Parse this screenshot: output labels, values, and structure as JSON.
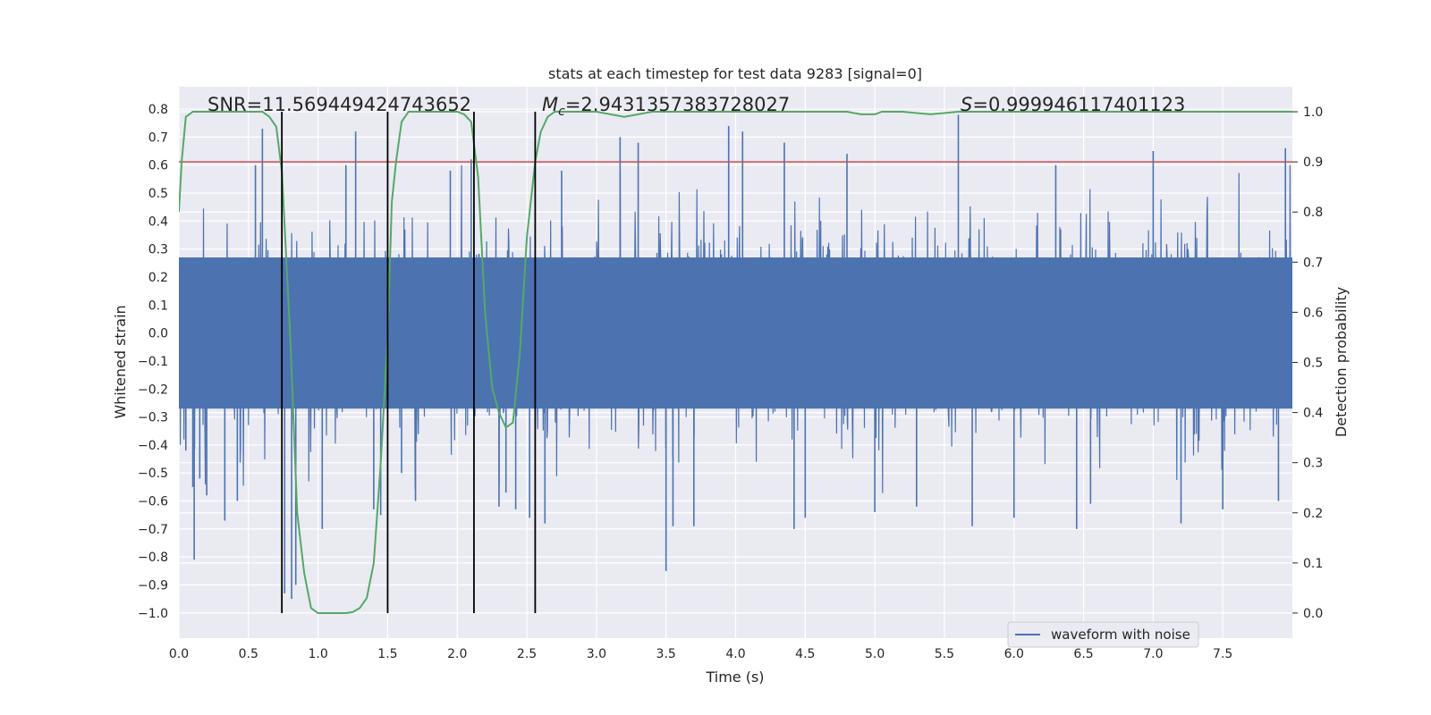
{
  "chart_data": {
    "type": "line",
    "title": "stats at each timestep for test data 9283 [signal=0]",
    "xlabel": "Time (s)",
    "ylabel_left": "Whitened strain",
    "ylabel_right": "Detection probability",
    "xlim": [
      0.0,
      8.0
    ],
    "ylim_left": [
      -1.09,
      0.88
    ],
    "ylim_right": [
      -0.05,
      1.05
    ],
    "x_ticks": [
      "0.0",
      "0.5",
      "1.0",
      "1.5",
      "2.0",
      "2.5",
      "3.0",
      "3.5",
      "4.0",
      "4.5",
      "5.0",
      "5.5",
      "6.0",
      "6.5",
      "7.0",
      "7.5"
    ],
    "y_ticks_left": [
      "0.8",
      "0.7",
      "0.6",
      "0.5",
      "0.4",
      "0.3",
      "0.2",
      "0.1",
      "0.0",
      "-0.1",
      "-0.2",
      "-0.3",
      "-0.4",
      "-0.5",
      "-0.6",
      "-0.7",
      "-0.8",
      "-0.9",
      "-1.0"
    ],
    "y_ticks_right": [
      "1.0",
      "0.9",
      "0.8",
      "0.7",
      "0.6",
      "0.5",
      "0.4",
      "0.3",
      "0.2",
      "0.1",
      "0.0"
    ],
    "stats": {
      "snr": "SNR=11.569449424743652",
      "mc_symbol": "M",
      "mc_sub": "c",
      "mc_value": "=2.9431357383728027",
      "s_symbol": "S",
      "s_value": "=0.999946117401123"
    },
    "legend": {
      "label": "waveform with noise",
      "location": "lower center-right"
    },
    "threshold": {
      "value_right_axis": 0.9,
      "color": "#c44e52"
    },
    "vertical_markers_s": [
      0.74,
      1.5,
      2.12,
      2.56
    ],
    "series": [
      {
        "name": "waveform with noise",
        "axis": "left",
        "color": "#4c72b0",
        "kind": "noise",
        "core_amplitude": 0.27,
        "typical_peak": 0.45,
        "extreme_peaks": [
          {
            "x": 0.05,
            "y": -0.42
          },
          {
            "x": 0.1,
            "y": -0.55
          },
          {
            "x": 0.11,
            "y": -0.81
          },
          {
            "x": 0.15,
            "y": -0.52
          },
          {
            "x": 0.2,
            "y": -0.58
          },
          {
            "x": 0.33,
            "y": -0.67
          },
          {
            "x": 0.42,
            "y": -0.6
          },
          {
            "x": 0.55,
            "y": 0.6
          },
          {
            "x": 0.6,
            "y": 0.73
          },
          {
            "x": 0.76,
            "y": -0.93
          },
          {
            "x": 0.81,
            "y": -0.95
          },
          {
            "x": 0.84,
            "y": -0.9
          },
          {
            "x": 1.03,
            "y": -0.7
          },
          {
            "x": 1.2,
            "y": 0.6
          },
          {
            "x": 1.27,
            "y": 0.72
          },
          {
            "x": 1.4,
            "y": -0.63
          },
          {
            "x": 1.45,
            "y": -0.65
          },
          {
            "x": 1.6,
            "y": -0.5
          },
          {
            "x": 1.7,
            "y": -0.6
          },
          {
            "x": 1.95,
            "y": 0.58
          },
          {
            "x": 2.1,
            "y": 0.62
          },
          {
            "x": 2.3,
            "y": -0.62
          },
          {
            "x": 2.35,
            "y": -0.57
          },
          {
            "x": 2.42,
            "y": -0.63
          },
          {
            "x": 2.52,
            "y": -0.66
          },
          {
            "x": 2.63,
            "y": -0.68
          },
          {
            "x": 2.75,
            "y": 0.58
          },
          {
            "x": 3.17,
            "y": 0.7
          },
          {
            "x": 3.3,
            "y": 0.68
          },
          {
            "x": 3.5,
            "y": -0.85
          },
          {
            "x": 3.55,
            "y": -0.69
          },
          {
            "x": 3.7,
            "y": -0.69
          },
          {
            "x": 3.95,
            "y": 0.74
          },
          {
            "x": 4.05,
            "y": 0.72
          },
          {
            "x": 4.35,
            "y": 0.68
          },
          {
            "x": 4.42,
            "y": -0.7
          },
          {
            "x": 4.5,
            "y": -0.66
          },
          {
            "x": 4.8,
            "y": 0.64
          },
          {
            "x": 5.0,
            "y": -0.64
          },
          {
            "x": 5.3,
            "y": -0.62
          },
          {
            "x": 5.6,
            "y": 0.78
          },
          {
            "x": 5.7,
            "y": -0.69
          },
          {
            "x": 6.0,
            "y": -0.66
          },
          {
            "x": 6.3,
            "y": 0.6
          },
          {
            "x": 6.45,
            "y": -0.7
          },
          {
            "x": 6.55,
            "y": -0.61
          },
          {
            "x": 7.0,
            "y": 0.65
          },
          {
            "x": 7.2,
            "y": -0.68
          },
          {
            "x": 7.5,
            "y": -0.63
          },
          {
            "x": 7.9,
            "y": -0.6
          },
          {
            "x": 7.95,
            "y": 0.66
          }
        ]
      },
      {
        "name": "detection probability",
        "axis": "right",
        "color": "#55a868",
        "x": [
          0.0,
          0.02,
          0.05,
          0.1,
          0.2,
          0.3,
          0.4,
          0.5,
          0.6,
          0.65,
          0.7,
          0.74,
          0.8,
          0.85,
          0.9,
          0.95,
          1.0,
          1.1,
          1.2,
          1.25,
          1.3,
          1.35,
          1.4,
          1.45,
          1.5,
          1.53,
          1.56,
          1.6,
          1.65,
          1.7,
          1.8,
          1.9,
          2.0,
          2.05,
          2.1,
          2.15,
          2.2,
          2.25,
          2.3,
          2.35,
          2.4,
          2.45,
          2.5,
          2.56,
          2.6,
          2.65,
          2.7,
          2.8,
          2.9,
          3.0,
          3.1,
          3.2,
          3.3,
          3.4,
          3.5,
          3.6,
          3.8,
          4.0,
          4.2,
          4.4,
          4.6,
          4.8,
          4.9,
          5.0,
          5.05,
          5.2,
          5.4,
          5.6,
          5.8,
          6.0,
          6.5,
          7.0,
          7.5,
          8.0
        ],
        "y": [
          0.8,
          0.9,
          0.99,
          1.0,
          1.0,
          1.0,
          1.0,
          1.0,
          1.0,
          0.99,
          0.97,
          0.88,
          0.55,
          0.2,
          0.08,
          0.01,
          0.0,
          0.0,
          0.0,
          0.002,
          0.01,
          0.03,
          0.1,
          0.3,
          0.55,
          0.82,
          0.9,
          0.98,
          1.0,
          1.0,
          1.0,
          1.0,
          1.0,
          0.995,
          0.98,
          0.87,
          0.6,
          0.45,
          0.4,
          0.37,
          0.38,
          0.52,
          0.75,
          0.9,
          0.96,
          0.99,
          1.0,
          1.0,
          1.0,
          1.0,
          0.995,
          0.99,
          0.995,
          1.0,
          1.0,
          1.0,
          1.0,
          1.0,
          1.0,
          1.0,
          1.0,
          1.0,
          0.995,
          0.995,
          1.0,
          1.0,
          0.995,
          1.0,
          1.0,
          1.0,
          1.0,
          1.0,
          1.0,
          1.0
        ]
      }
    ]
  }
}
